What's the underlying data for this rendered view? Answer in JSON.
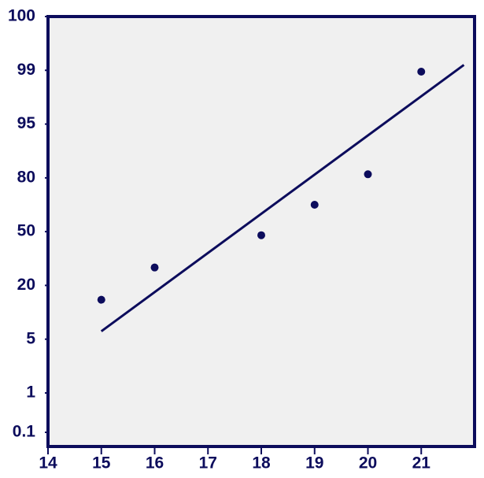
{
  "chart_data": {
    "type": "scatter",
    "x": [
      15,
      16,
      18,
      19,
      20,
      21
    ],
    "values": [
      16,
      30,
      48,
      65,
      81,
      98.9
    ],
    "color": "#0c0c5c",
    "fit_line": {
      "x": [
        15,
        21.8
      ],
      "values": [
        7.2,
        99.1
      ]
    },
    "xlim": [
      14,
      22
    ],
    "xticks": [
      14,
      15,
      16,
      17,
      18,
      19,
      20,
      21
    ],
    "ylim": [
      0.1,
      100
    ],
    "yticks": [
      0.1,
      1,
      5,
      20,
      50,
      80,
      95,
      99,
      100
    ],
    "background": "#f0f0f0"
  }
}
